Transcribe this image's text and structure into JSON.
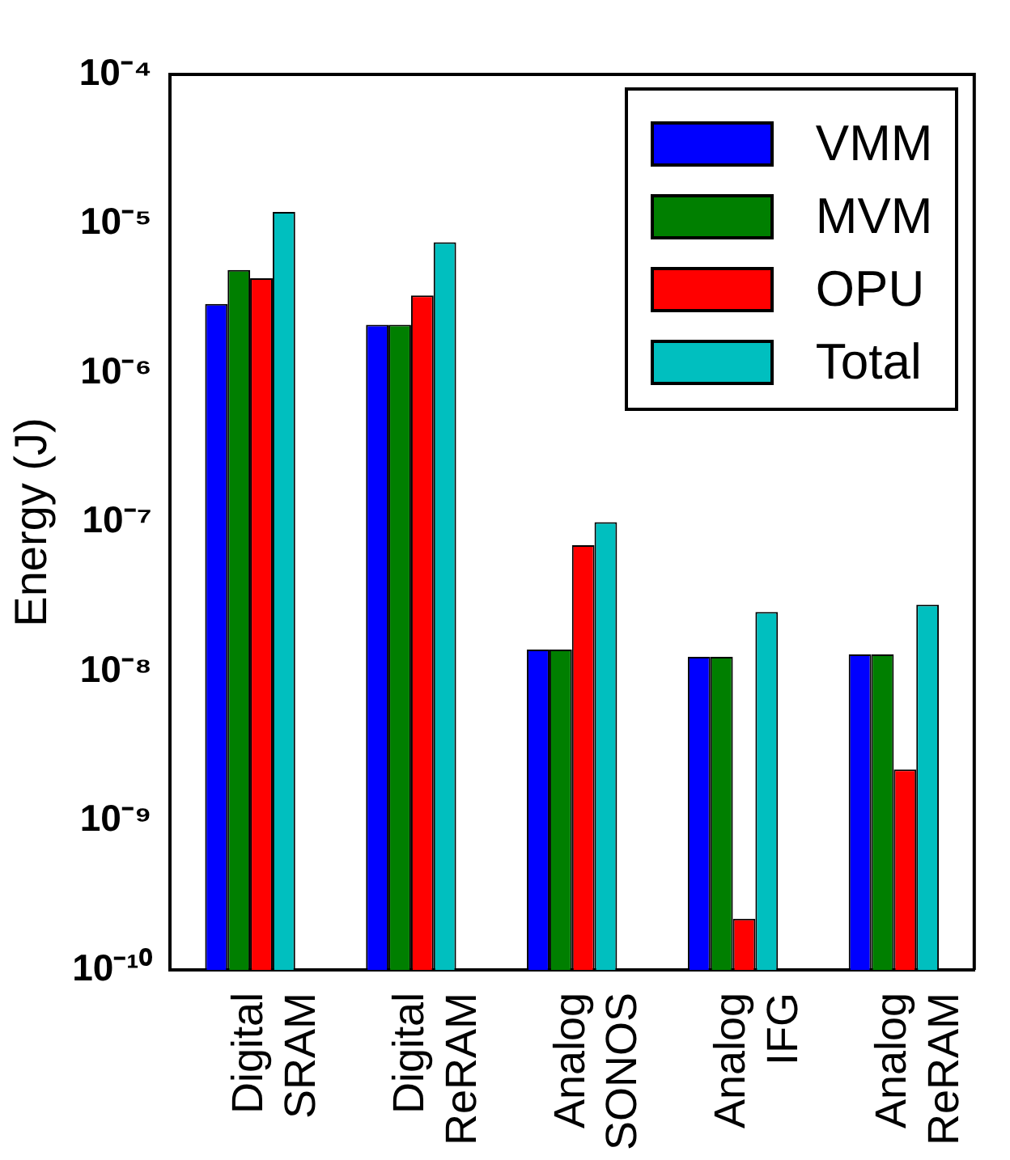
{
  "chart_data": {
    "type": "bar",
    "ylabel": "Energy (J)",
    "categories": [
      "Digital SRAM",
      "Digital ReRAM",
      "Analog SONOS",
      "Analog IFG",
      "Analog ReRAM"
    ],
    "series": [
      {
        "name": "VMM",
        "color": "#0000ff",
        "values": [
          2.9e-06,
          2.1e-06,
          1.4e-08,
          1.25e-08,
          1.3e-08
        ]
      },
      {
        "name": "MVM",
        "color": "#007f00",
        "values": [
          4.9e-06,
          2.1e-06,
          1.4e-08,
          1.25e-08,
          1.3e-08
        ]
      },
      {
        "name": "OPU",
        "color": "#ff0000",
        "values": [
          4.3e-06,
          3.3e-06,
          7e-08,
          2.2e-10,
          2.2e-09
        ]
      },
      {
        "name": "Total",
        "color": "#00bfbf",
        "values": [
          1.2e-05,
          7.5e-06,
          1e-07,
          2.5e-08,
          2.8e-08
        ]
      }
    ],
    "log": true,
    "ylim": [
      1e-10,
      0.0001
    ],
    "yticks": [
      {
        "value": 1e-10,
        "label": "10⁻¹⁰"
      },
      {
        "value": 1e-09,
        "label": "10⁻⁹"
      },
      {
        "value": 1e-08,
        "label": "10⁻⁸"
      },
      {
        "value": 1e-07,
        "label": "10⁻⁷"
      },
      {
        "value": 1e-06,
        "label": "10⁻⁶"
      },
      {
        "value": 1e-05,
        "label": "10⁻⁵"
      },
      {
        "value": 0.0001,
        "label": "10⁻⁴"
      }
    ],
    "grid": false,
    "legend": "top right"
  }
}
